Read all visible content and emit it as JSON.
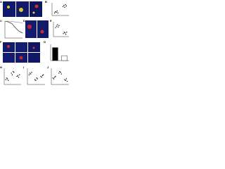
{
  "panels": [
    {
      "label": "A"
    },
    {
      "label": "B",
      "chart": {
        "type": "scatter",
        "ylim": [
          0,
          10
        ],
        "series": [
          {
            "color": "#000000",
            "values": [
              2,
              3,
              2.5,
              3.5,
              2
            ]
          },
          {
            "color": "#000000",
            "values": [
              7,
              8,
              6.5,
              8.5,
              7.5
            ]
          }
        ]
      }
    },
    {
      "label": "C",
      "chart": {
        "type": "line",
        "ylim": [
          0,
          100
        ],
        "series": [
          {
            "color": "#000000",
            "values": [
              100,
              95,
              85,
              60,
              40,
              30
            ]
          },
          {
            "color": "#888888",
            "values": [
              100,
              100,
              98,
              95,
              92,
              90
            ]
          }
        ]
      }
    },
    {
      "label": "D"
    },
    {
      "label": "E",
      "chart": {
        "type": "scatter",
        "ylim": [
          0,
          10
        ],
        "series": [
          {
            "color": "#000000",
            "values": [
              6,
              7,
              8,
              6.5,
              7.5
            ]
          },
          {
            "color": "#000000",
            "values": [
              2,
              3,
              2.5,
              1.5,
              3
            ]
          }
        ]
      }
    },
    {
      "label": "F"
    },
    {
      "label": "G",
      "chart": {
        "type": "bar",
        "ylim": [
          0,
          10
        ],
        "series": [
          {
            "color": "#000000",
            "values": [
              8
            ]
          },
          {
            "color": "#ffffff",
            "values": [
              3
            ]
          }
        ]
      }
    },
    {
      "label": "H",
      "chart": {
        "type": "scatter",
        "ylim": [
          0,
          10
        ],
        "series": [
          {
            "color": "#000000",
            "values": [
              3,
              4,
              3.5,
              2.5
            ]
          },
          {
            "color": "#000000",
            "values": [
              7,
              6,
              8,
              7.5
            ]
          },
          {
            "color": "#000000",
            "values": [
              5,
              5.5,
              4.5,
              6
            ]
          }
        ]
      }
    },
    {
      "label": "I",
      "chart": {
        "type": "scatter",
        "ylim": [
          0,
          10
        ],
        "series": [
          {
            "color": "#000000",
            "values": [
              6,
              7,
              6.5,
              7.5
            ]
          },
          {
            "color": "#000000",
            "values": [
              3,
              2.5,
              4,
              3.5
            ]
          },
          {
            "color": "#000000",
            "values": [
              5,
              4.5,
              5.5,
              6
            ]
          }
        ]
      }
    },
    {
      "label": "J",
      "chart": {
        "type": "scatter",
        "ylim": [
          0,
          10
        ],
        "series": [
          {
            "color": "#000000",
            "values": [
              4,
              3.5,
              4.5,
              5
            ]
          },
          {
            "color": "#000000",
            "values": [
              7,
              8,
              7.5,
              6.5
            ]
          },
          {
            "color": "#000000",
            "values": [
              3,
              2.5,
              3.5,
              2
            ]
          }
        ]
      }
    }
  ]
}
